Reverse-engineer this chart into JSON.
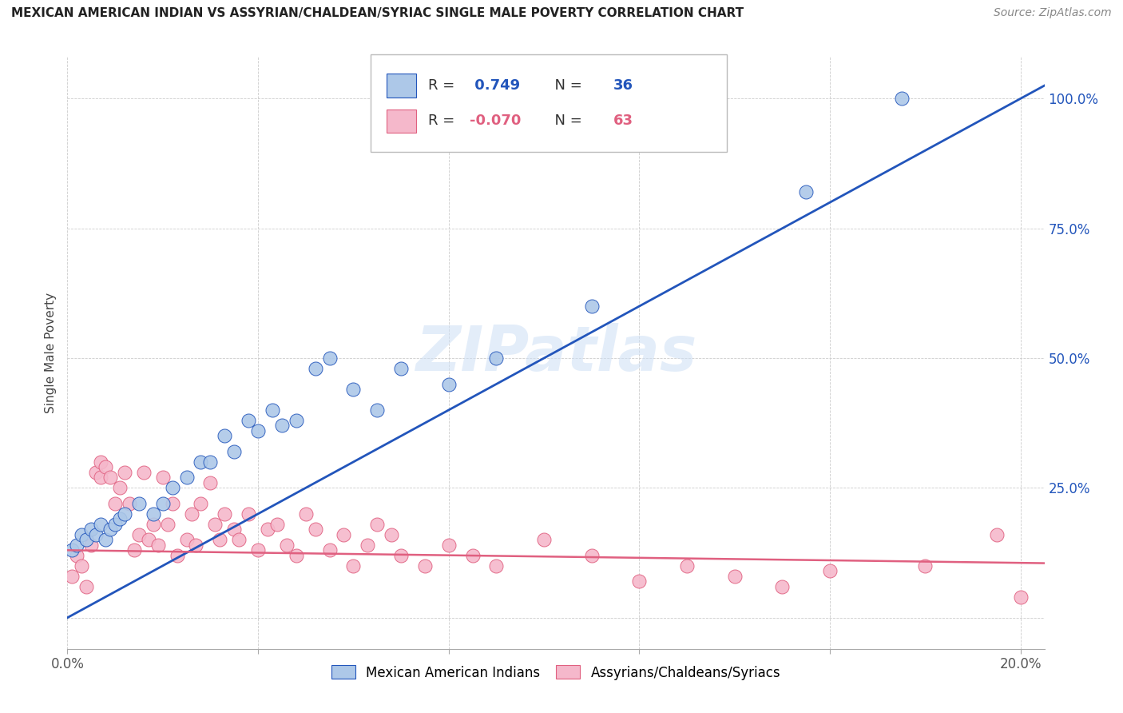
{
  "title": "MEXICAN AMERICAN INDIAN VS ASSYRIAN/CHALDEAN/SYRIAC SINGLE MALE POVERTY CORRELATION CHART",
  "source": "Source: ZipAtlas.com",
  "ylabel": "Single Male Poverty",
  "blue_r": 0.749,
  "blue_n": 36,
  "pink_r": -0.07,
  "pink_n": 63,
  "legend_labels": [
    "Mexican American Indians",
    "Assyrians/Chaldeans/Syriacs"
  ],
  "blue_color": "#adc8e8",
  "pink_color": "#f5b8cb",
  "blue_line_color": "#2255bb",
  "pink_line_color": "#e06080",
  "watermark": "ZIPatlas",
  "blue_scatter_x": [
    0.001,
    0.002,
    0.003,
    0.004,
    0.005,
    0.006,
    0.007,
    0.008,
    0.009,
    0.01,
    0.011,
    0.012,
    0.015,
    0.018,
    0.02,
    0.022,
    0.025,
    0.028,
    0.03,
    0.033,
    0.035,
    0.038,
    0.04,
    0.043,
    0.045,
    0.048,
    0.052,
    0.055,
    0.06,
    0.065,
    0.07,
    0.08,
    0.09,
    0.11,
    0.155,
    0.175
  ],
  "blue_scatter_y": [
    0.13,
    0.14,
    0.16,
    0.15,
    0.17,
    0.16,
    0.18,
    0.15,
    0.17,
    0.18,
    0.19,
    0.2,
    0.22,
    0.2,
    0.22,
    0.25,
    0.27,
    0.3,
    0.3,
    0.35,
    0.32,
    0.38,
    0.36,
    0.4,
    0.37,
    0.38,
    0.48,
    0.5,
    0.44,
    0.4,
    0.48,
    0.45,
    0.5,
    0.6,
    0.82,
    1.0
  ],
  "pink_scatter_x": [
    0.001,
    0.002,
    0.003,
    0.004,
    0.005,
    0.006,
    0.007,
    0.007,
    0.008,
    0.009,
    0.01,
    0.011,
    0.012,
    0.013,
    0.014,
    0.015,
    0.016,
    0.017,
    0.018,
    0.019,
    0.02,
    0.021,
    0.022,
    0.023,
    0.025,
    0.026,
    0.027,
    0.028,
    0.03,
    0.031,
    0.032,
    0.033,
    0.035,
    0.036,
    0.038,
    0.04,
    0.042,
    0.044,
    0.046,
    0.048,
    0.05,
    0.052,
    0.055,
    0.058,
    0.06,
    0.063,
    0.065,
    0.068,
    0.07,
    0.075,
    0.08,
    0.085,
    0.09,
    0.1,
    0.11,
    0.12,
    0.13,
    0.14,
    0.15,
    0.16,
    0.18,
    0.195,
    0.2
  ],
  "pink_scatter_y": [
    0.08,
    0.12,
    0.1,
    0.06,
    0.14,
    0.28,
    0.3,
    0.27,
    0.29,
    0.27,
    0.22,
    0.25,
    0.28,
    0.22,
    0.13,
    0.16,
    0.28,
    0.15,
    0.18,
    0.14,
    0.27,
    0.18,
    0.22,
    0.12,
    0.15,
    0.2,
    0.14,
    0.22,
    0.26,
    0.18,
    0.15,
    0.2,
    0.17,
    0.15,
    0.2,
    0.13,
    0.17,
    0.18,
    0.14,
    0.12,
    0.2,
    0.17,
    0.13,
    0.16,
    0.1,
    0.14,
    0.18,
    0.16,
    0.12,
    0.1,
    0.14,
    0.12,
    0.1,
    0.15,
    0.12,
    0.07,
    0.1,
    0.08,
    0.06,
    0.09,
    0.1,
    0.16,
    0.04
  ],
  "blue_line_x": [
    0.0,
    0.205
  ],
  "blue_line_y": [
    0.0,
    1.025
  ],
  "pink_line_x": [
    0.0,
    0.205
  ],
  "pink_line_y": [
    0.13,
    0.105
  ],
  "xlim": [
    0.0,
    0.205
  ],
  "ylim": [
    -0.06,
    1.08
  ],
  "x_tick_pos": [
    0.0,
    0.04,
    0.08,
    0.12,
    0.16,
    0.2
  ],
  "x_tick_labels": [
    "0.0%",
    "",
    "",
    "",
    "",
    "20.0%"
  ],
  "y_tick_pos": [
    0.0,
    0.25,
    0.5,
    0.75,
    1.0
  ],
  "y_tick_labels": [
    "",
    "25.0%",
    "50.0%",
    "75.0%",
    "100.0%"
  ],
  "title_fontsize": 11,
  "source_fontsize": 10,
  "axis_label_fontsize": 11,
  "tick_fontsize": 12,
  "legend_fontsize": 13
}
